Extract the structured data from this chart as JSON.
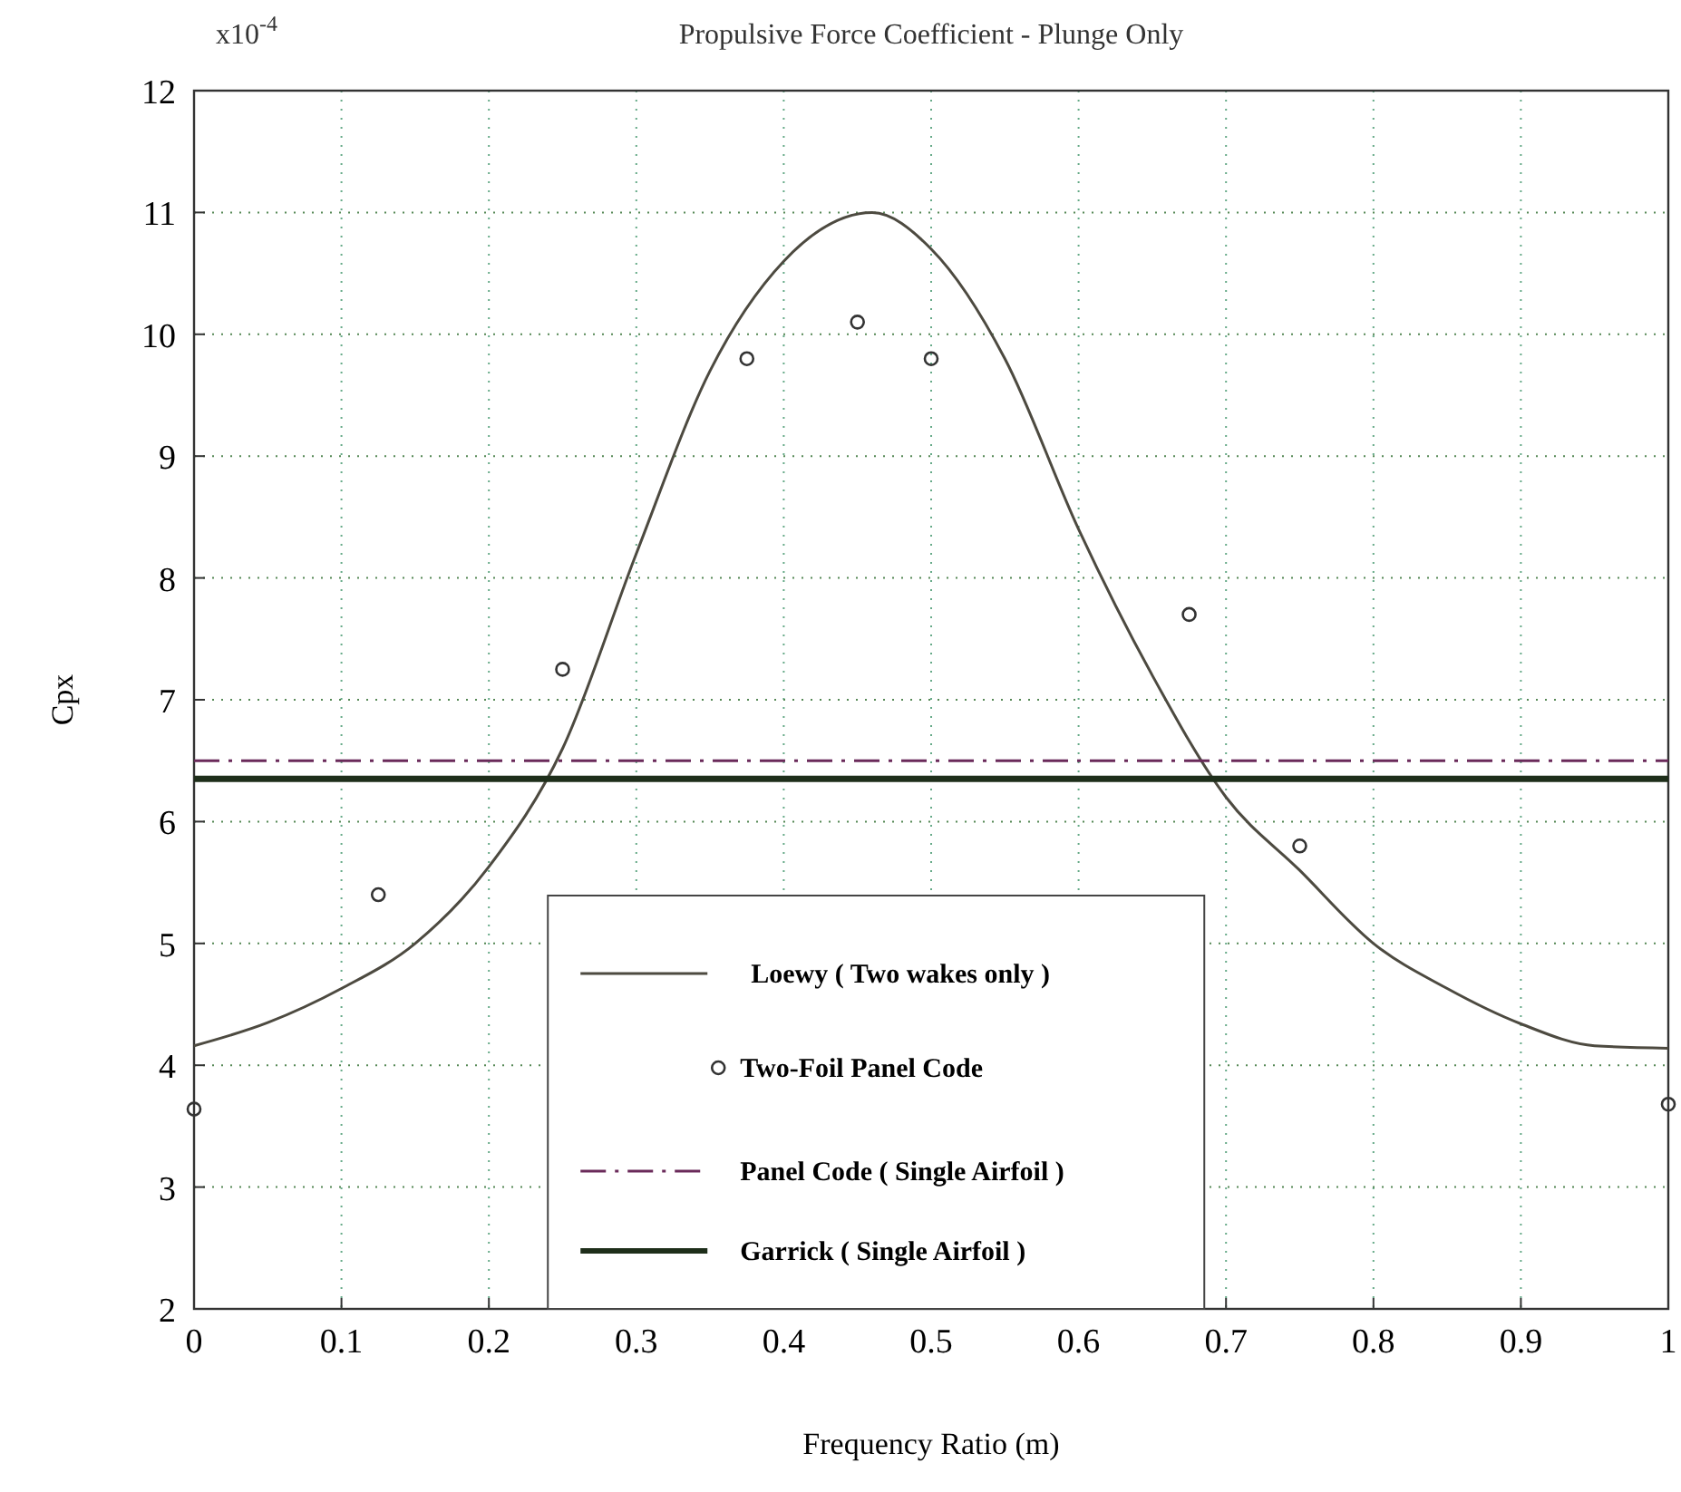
{
  "chart_data": {
    "type": "line",
    "title": "Propulsive Force Coefficient - Plunge Only",
    "xlabel": "Frequency Ratio (m)",
    "ylabel": "Cpx",
    "annotations": [
      "x10$^{-4}$"
    ],
    "xlim": [
      0,
      1
    ],
    "xticks": [
      0,
      0.1,
      0.2,
      0.3,
      0.4,
      0.5,
      0.6,
      0.7,
      0.8,
      0.9,
      1
    ],
    "ylim": [
      2,
      12
    ],
    "yticks": [
      2,
      3,
      4,
      5,
      6,
      7,
      8,
      9,
      10,
      11,
      12
    ],
    "grid": true,
    "legend": "bottom",
    "series": [
      {
        "name": "Loewy ( Two wakes only )",
        "color": "#4d4a40",
        "marker": "none",
        "line_style": "solid",
        "x": [
          0,
          0.05,
          0.1,
          0.15,
          0.2,
          0.25,
          0.3,
          0.35,
          0.4,
          0.46,
          0.5,
          0.55,
          0.6,
          0.65,
          0.7,
          0.75,
          0.8,
          0.85,
          0.9,
          0.95,
          1
        ],
        "values": [
          4.16,
          4.35,
          4.63,
          5.0,
          5.63,
          6.6,
          8.2,
          9.7,
          10.6,
          11.0,
          10.7,
          9.8,
          8.4,
          7.2,
          6.2,
          5.6,
          5.0,
          4.63,
          4.34,
          4.16,
          4.14
        ]
      },
      {
        "name": "Two-Foil Panel Code",
        "type": "scatter",
        "color": "#333333",
        "marker": "circle",
        "x": [
          0,
          0.125,
          0.25,
          0.375,
          0.45,
          0.5,
          0.675,
          0.75,
          1
        ],
        "values": [
          3.64,
          5.4,
          7.25,
          9.8,
          10.1,
          9.8,
          7.7,
          5.8,
          3.68
        ]
      },
      {
        "name": "Panel Code ( Single Airfoil )",
        "color": "#6a2a5a",
        "marker": "none",
        "line_style": "dashed",
        "x": [
          0,
          1
        ],
        "values": [
          6.5,
          6.5
        ]
      },
      {
        "name": "Garrick ( Single Airfoil )",
        "color": "#1e2e1a",
        "marker": "none",
        "line_style": "solid",
        "x": [
          0,
          1
        ],
        "values": [
          6.35,
          6.35
        ]
      }
    ]
  }
}
